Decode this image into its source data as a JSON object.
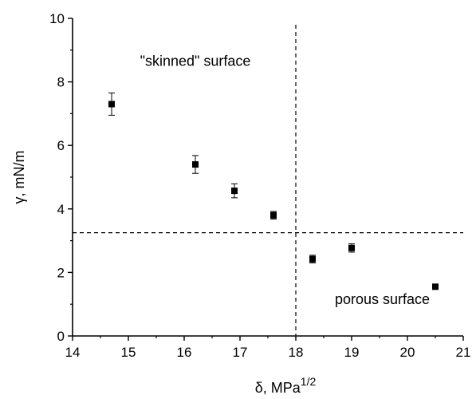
{
  "chart_data": {
    "type": "scatter",
    "title": "",
    "xlabel": {
      "base": "δ, MPa",
      "sup": "1/2"
    },
    "ylabel": "γ, mN/m",
    "xlim": [
      14,
      21
    ],
    "ylim": [
      0,
      10
    ],
    "xticks": [
      "14",
      "15",
      "16",
      "17",
      "18",
      "19",
      "20",
      "21"
    ],
    "yticks": [
      "0",
      "2",
      "4",
      "6",
      "8",
      "10"
    ],
    "grid": false,
    "legend": "none",
    "series": [
      {
        "marker": "square",
        "color": "#000000",
        "points": [
          {
            "x": 14.7,
            "y": 7.3,
            "err": 0.35
          },
          {
            "x": 16.2,
            "y": 5.4,
            "err": 0.28
          },
          {
            "x": 16.9,
            "y": 4.57,
            "err": 0.22
          },
          {
            "x": 17.6,
            "y": 3.8,
            "err": 0.12
          },
          {
            "x": 18.3,
            "y": 2.42,
            "err": 0.12
          },
          {
            "x": 19.0,
            "y": 2.77,
            "err": 0.13
          },
          {
            "x": 20.5,
            "y": 1.55,
            "err": 0.04
          }
        ]
      }
    ],
    "reference_lines": {
      "vertical_x": 18,
      "horizontal_y": 3.25,
      "style": "dashed"
    },
    "annotations": [
      {
        "text": "\"skinned\" surface",
        "x": 16.2,
        "y": 8.5
      },
      {
        "text": "porous surface",
        "x": 19.55,
        "y": 1.0
      }
    ]
  }
}
